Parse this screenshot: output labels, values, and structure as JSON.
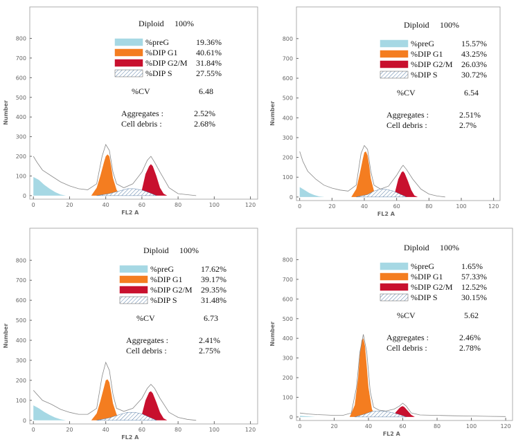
{
  "chart_data": [
    {
      "type": "area",
      "x_label": "FL2 A",
      "y_label": "Number",
      "xlim": [
        -2,
        124
      ],
      "ylim": [
        -18,
        960
      ],
      "xticks": [
        0,
        20,
        40,
        60,
        80,
        100,
        120
      ],
      "yticks": [
        0,
        100,
        200,
        300,
        400,
        500,
        600,
        700,
        800
      ],
      "diploid_label": "Diploid",
      "diploid_value": "100%",
      "cv_label": "%CV",
      "cv_value": 6.48,
      "aggregates_label": "Aggregates :",
      "aggregates_value": "2.52%",
      "debris_label": "Cell debris  :",
      "debris_value": "2.68%",
      "series": [
        {
          "name": "%preG",
          "percent": "19.36%",
          "color": "#a6d8e4",
          "fill": "solid",
          "x": [
            0,
            3,
            6,
            9,
            12,
            15,
            18
          ],
          "values": [
            95,
            80,
            55,
            35,
            18,
            6,
            0
          ]
        },
        {
          "name": "%DIP G1",
          "percent": "40.61%",
          "color": "#f47d20",
          "fill": "solid",
          "x": [
            32,
            35,
            37,
            39,
            40,
            41,
            42,
            43,
            44,
            46,
            48
          ],
          "values": [
            0,
            40,
            100,
            170,
            200,
            210,
            200,
            150,
            90,
            30,
            0
          ]
        },
        {
          "name": "%DIP G2/M",
          "percent": "31.84%",
          "color": "#c8102e",
          "fill": "solid",
          "x": [
            58,
            60,
            62,
            64,
            65,
            66,
            68,
            70,
            72,
            74
          ],
          "values": [
            0,
            30,
            110,
            150,
            160,
            150,
            100,
            40,
            10,
            0
          ]
        },
        {
          "name": "%DIP S",
          "percent": "27.55%",
          "color": "#5a7fa8",
          "fill": "hatch",
          "x": [
            35,
            42,
            48,
            52,
            56,
            60,
            64,
            68
          ],
          "values": [
            0,
            10,
            25,
            35,
            35,
            28,
            15,
            0
          ]
        },
        {
          "color": "#888888",
          "fill": "none",
          "x": [
            0,
            2,
            5,
            10,
            15,
            20,
            25,
            30,
            35,
            38,
            40,
            42,
            44,
            46,
            50,
            55,
            60,
            63,
            65,
            67,
            70,
            75,
            80,
            85,
            90
          ],
          "values": [
            200,
            170,
            130,
            100,
            70,
            50,
            35,
            30,
            60,
            200,
            260,
            230,
            120,
            60,
            40,
            60,
            120,
            180,
            200,
            170,
            120,
            40,
            10,
            5,
            0
          ]
        }
      ]
    },
    {
      "type": "area",
      "x_label": "FL2 A",
      "y_label": "Number",
      "xlim": [
        -2,
        124
      ],
      "ylim": [
        -18,
        960
      ],
      "xticks": [
        0,
        20,
        40,
        60,
        80,
        100,
        120
      ],
      "yticks": [
        0,
        100,
        200,
        300,
        400,
        500,
        600,
        700,
        800
      ],
      "diploid_label": "Diploid",
      "diploid_value": "100%",
      "cv_label": "%CV",
      "cv_value": 6.54,
      "aggregates_label": "Aggregates :",
      "aggregates_value": "2.51%",
      "debris_label": "Cell debris  :",
      "debris_value": "2.7%",
      "series": [
        {
          "name": "%preG",
          "percent": "15.57%",
          "color": "#a6d8e4",
          "fill": "solid",
          "x": [
            0,
            3,
            6,
            9,
            12,
            15
          ],
          "values": [
            50,
            35,
            20,
            10,
            3,
            0
          ]
        },
        {
          "name": "%DIP G1",
          "percent": "43.25%",
          "color": "#f47d20",
          "fill": "solid",
          "x": [
            32,
            35,
            37,
            39,
            40,
            41,
            42,
            43,
            44,
            46,
            48
          ],
          "values": [
            0,
            40,
            110,
            190,
            225,
            230,
            210,
            160,
            95,
            30,
            0
          ]
        },
        {
          "name": "%DIP G2/M",
          "percent": "26.03%",
          "color": "#c8102e",
          "fill": "solid",
          "x": [
            57,
            59,
            61,
            63,
            64,
            65,
            67,
            69,
            71,
            73
          ],
          "values": [
            0,
            25,
            90,
            125,
            130,
            120,
            80,
            35,
            8,
            0
          ]
        },
        {
          "name": "%DIP S",
          "percent": "30.72%",
          "color": "#5a7fa8",
          "fill": "hatch",
          "x": [
            35,
            42,
            46,
            50,
            54,
            58,
            62,
            66
          ],
          "values": [
            0,
            12,
            30,
            40,
            38,
            30,
            15,
            0
          ]
        },
        {
          "color": "#888888",
          "fill": "none",
          "x": [
            0,
            2,
            5,
            10,
            15,
            20,
            25,
            30,
            35,
            38,
            40,
            42,
            44,
            46,
            50,
            55,
            60,
            63,
            64,
            66,
            70,
            75,
            80,
            85,
            90
          ],
          "values": [
            230,
            180,
            130,
            90,
            60,
            45,
            35,
            30,
            60,
            220,
            260,
            240,
            130,
            60,
            40,
            55,
            110,
            150,
            160,
            140,
            90,
            40,
            15,
            5,
            0
          ]
        }
      ]
    },
    {
      "type": "area",
      "x_label": "FL2 A",
      "y_label": "Number",
      "xlim": [
        -2,
        124
      ],
      "ylim": [
        -18,
        960
      ],
      "xticks": [
        0,
        20,
        40,
        60,
        80,
        100,
        120
      ],
      "yticks": [
        0,
        100,
        200,
        300,
        400,
        500,
        600,
        700,
        800
      ],
      "diploid_label": "Diploid",
      "diploid_value": "100%",
      "cv_label": "%CV",
      "cv_value": 6.73,
      "aggregates_label": "Aggregates :",
      "aggregates_value": "2.41%",
      "debris_label": "Cell debris  :",
      "debris_value": "2.75%",
      "series": [
        {
          "name": "%preG",
          "percent": "17.62%",
          "color": "#a6d8e4",
          "fill": "solid",
          "x": [
            0,
            3,
            6,
            9,
            12,
            15,
            18
          ],
          "values": [
            75,
            60,
            42,
            27,
            14,
            5,
            0
          ]
        },
        {
          "name": "%DIP G1",
          "percent": "39.17%",
          "color": "#f47d20",
          "fill": "solid",
          "x": [
            32,
            35,
            37,
            39,
            40,
            41,
            42,
            43,
            44,
            46,
            48
          ],
          "values": [
            0,
            35,
            95,
            165,
            200,
            205,
            190,
            140,
            85,
            30,
            0
          ]
        },
        {
          "name": "%DIP G2/M",
          "percent": "29.35%",
          "color": "#c8102e",
          "fill": "solid",
          "x": [
            58,
            60,
            62,
            64,
            65,
            66,
            68,
            70,
            72,
            74
          ],
          "values": [
            0,
            30,
            100,
            140,
            145,
            135,
            90,
            40,
            10,
            0
          ]
        },
        {
          "name": "%DIP S",
          "percent": "31.48%",
          "color": "#5a7fa8",
          "fill": "hatch",
          "x": [
            35,
            42,
            48,
            52,
            56,
            60,
            64,
            68
          ],
          "values": [
            0,
            12,
            30,
            40,
            40,
            32,
            16,
            0
          ]
        },
        {
          "color": "#888888",
          "fill": "none",
          "x": [
            0,
            2,
            5,
            10,
            15,
            20,
            25,
            30,
            35,
            38,
            40,
            42,
            44,
            46,
            50,
            55,
            60,
            63,
            65,
            67,
            70,
            75,
            80,
            85,
            90
          ],
          "values": [
            150,
            130,
            100,
            80,
            55,
            40,
            30,
            30,
            60,
            220,
            290,
            250,
            130,
            60,
            45,
            60,
            110,
            160,
            180,
            160,
            110,
            40,
            15,
            5,
            0
          ]
        }
      ]
    },
    {
      "type": "area",
      "x_label": "FL2 A",
      "y_label": "Number",
      "xlim": [
        -2,
        124
      ],
      "ylim": [
        -18,
        960
      ],
      "xticks": [
        0,
        20,
        40,
        60,
        80,
        100,
        120
      ],
      "yticks": [
        0,
        100,
        200,
        300,
        400,
        500,
        600,
        700,
        800
      ],
      "diploid_label": "Diploid",
      "diploid_value": "100%",
      "cv_label": "%CV",
      "cv_value": 5.62,
      "aggregates_label": "Aggregates :",
      "aggregates_value": "2.46%",
      "debris_label": "Cell debris  :",
      "debris_value": "2.78%",
      "series": [
        {
          "name": "%preG",
          "percent": "1.65%",
          "color": "#a6d8e4",
          "fill": "solid",
          "x": [
            0,
            3,
            6,
            9
          ],
          "values": [
            6,
            4,
            2,
            0
          ]
        },
        {
          "name": "%DIP G1",
          "percent": "57.33%",
          "color": "#f47d20",
          "fill": "solid",
          "x": [
            29,
            32,
            34,
            35,
            36,
            37,
            38,
            39,
            40,
            42,
            44
          ],
          "values": [
            0,
            60,
            200,
            320,
            390,
            400,
            360,
            260,
            150,
            40,
            0
          ]
        },
        {
          "name": "%DIP G2/M",
          "percent": "12.52%",
          "color": "#c8102e",
          "fill": "solid",
          "x": [
            54,
            56,
            58,
            59,
            60,
            61,
            63,
            65,
            67
          ],
          "values": [
            0,
            25,
            45,
            52,
            55,
            50,
            30,
            10,
            0
          ]
        },
        {
          "name": "%DIP S",
          "percent": "30.15%",
          "color": "#5a7fa8",
          "fill": "hatch",
          "x": [
            32,
            38,
            42,
            46,
            50,
            54,
            58,
            62
          ],
          "values": [
            0,
            15,
            28,
            30,
            28,
            22,
            12,
            0
          ]
        },
        {
          "color": "#888888",
          "fill": "none",
          "x": [
            0,
            5,
            10,
            15,
            20,
            25,
            30,
            33,
            35,
            37,
            39,
            41,
            43,
            46,
            50,
            55,
            58,
            60,
            62,
            65,
            70,
            80,
            90,
            100,
            110,
            120
          ],
          "values": [
            20,
            15,
            12,
            10,
            8,
            8,
            20,
            150,
            330,
            420,
            330,
            130,
            50,
            35,
            30,
            40,
            55,
            70,
            55,
            20,
            10,
            8,
            6,
            5,
            3,
            2
          ]
        }
      ]
    }
  ]
}
